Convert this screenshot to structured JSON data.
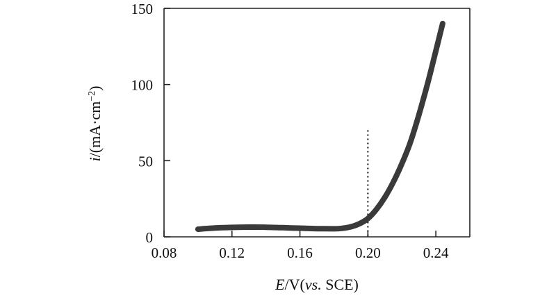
{
  "chart_data": {
    "type": "line",
    "title": "",
    "xlabel": {
      "italic": "E",
      "mid": "/V(",
      "italic2": "vs.",
      "tail": " SCE)"
    },
    "ylabel": {
      "italic": "i",
      "rest": "/(mA·cm",
      "sup": "−2",
      "close": ")"
    },
    "xlim": [
      0.08,
      0.26
    ],
    "ylim": [
      0,
      150
    ],
    "x_ticks": [
      0.08,
      0.12,
      0.16,
      0.2,
      0.24
    ],
    "x_tick_labels": [
      "0.08",
      "0.12",
      "0.16",
      "0.20",
      "0.24"
    ],
    "y_ticks": [
      0,
      50,
      100,
      150
    ],
    "y_tick_labels": [
      "0",
      "50",
      "100",
      "150"
    ],
    "grid": false,
    "series": [
      {
        "x": [
          0.1,
          0.11,
          0.12,
          0.13,
          0.14,
          0.15,
          0.16,
          0.17,
          0.18,
          0.185,
          0.19,
          0.195,
          0.2,
          0.205,
          0.21,
          0.215,
          0.22,
          0.225,
          0.23,
          0.235,
          0.24,
          0.244
        ],
        "y": [
          5,
          5.8,
          6.2,
          6.4,
          6.3,
          6.0,
          5.7,
          5.4,
          5.3,
          5.6,
          6.6,
          8.6,
          12,
          18,
          26,
          36,
          48,
          62,
          80,
          100,
          122,
          140
        ]
      }
    ],
    "vline": {
      "x": 0.2,
      "y_top": 70
    }
  }
}
